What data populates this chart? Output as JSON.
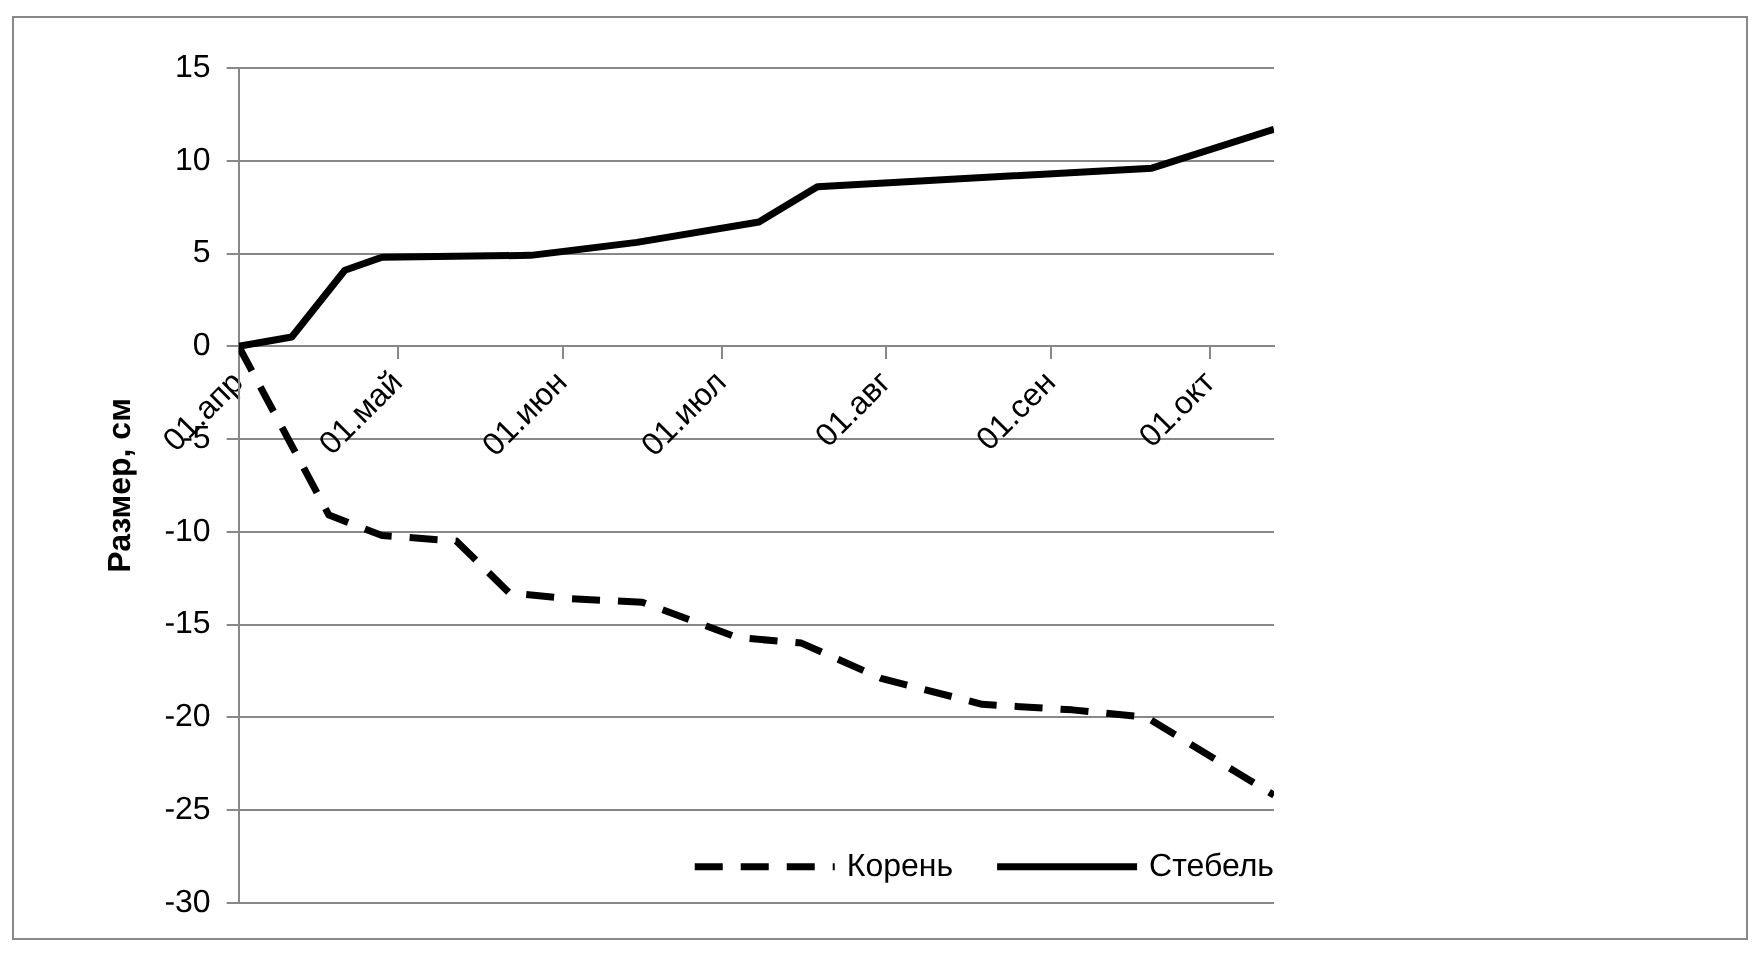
{
  "chart_data": {
    "type": "line",
    "ylabel": "Размер, см",
    "ylim": [
      -30,
      15
    ],
    "yticks": [
      -30,
      -25,
      -20,
      -15,
      -10,
      -5,
      0,
      5,
      10,
      15
    ],
    "xlim": [
      "--04-01",
      "--10-13"
    ],
    "xticks": [
      {
        "value": "--04-01",
        "label": "01.апр"
      },
      {
        "value": "--05-01",
        "label": "01.май"
      },
      {
        "value": "--06-01",
        "label": "01.июн"
      },
      {
        "value": "--07-01",
        "label": "01.июл"
      },
      {
        "value": "--08-01",
        "label": "01.авг"
      },
      {
        "value": "--09-01",
        "label": "01.сен"
      },
      {
        "value": "--10-01",
        "label": "01.окт"
      }
    ],
    "grid": "y",
    "legend": "bottom right",
    "marker": "none",
    "series": [
      {
        "name": "Корень",
        "color": "#000000",
        "line_style": "dashed",
        "x": [
          "--04-01",
          "--04-18",
          "--04-28",
          "--05-12",
          "--05-22",
          "--06-02",
          "--06-16",
          "--07-04",
          "--07-16",
          "--07-31",
          "--08-19",
          "--09-05",
          "--09-19",
          "--10-13"
        ],
        "values": [
          0,
          -9.1,
          -10.2,
          -10.5,
          -13.3,
          -13.6,
          -13.8,
          -15.7,
          -16.0,
          -17.9,
          -19.3,
          -19.6,
          -20.0,
          -24.2
        ]
      },
      {
        "name": "Стебель",
        "color": "#000000",
        "line_style": "solid",
        "x": [
          "--04-01",
          "--04-11",
          "--04-21",
          "--04-28",
          "--05-26",
          "--06-15",
          "--07-08",
          "--07-19",
          "--09-20",
          "--10-13"
        ],
        "values": [
          0,
          0.5,
          4.1,
          4.8,
          4.9,
          5.6,
          6.7,
          8.6,
          9.6,
          11.7
        ]
      }
    ]
  }
}
